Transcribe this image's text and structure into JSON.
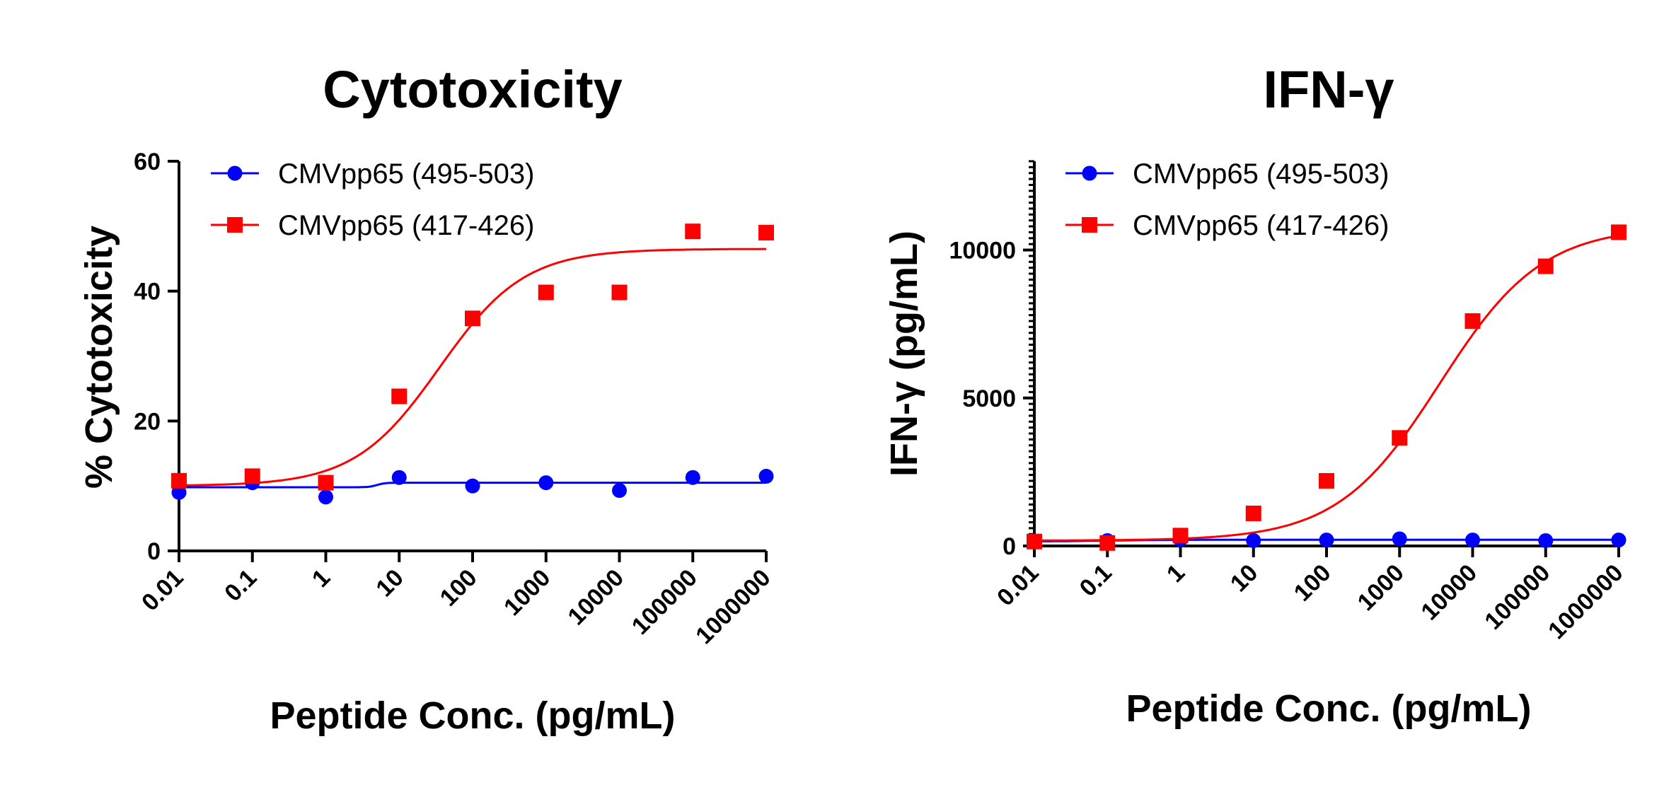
{
  "chart_data": [
    {
      "type": "scatter",
      "title": "Cytotoxicity",
      "xlabel": "Peptide Conc. (pg/mL)",
      "ylabel": "% Cytotoxicity",
      "x_scale": "log",
      "x_tick_labels": [
        "0.01",
        "0.1",
        "1",
        "10",
        "100",
        "1000",
        "10000",
        "100000",
        "1000000"
      ],
      "x": [
        0.01,
        0.1,
        1,
        10,
        100,
        1000,
        10000,
        100000,
        1000000
      ],
      "xlim": [
        0.01,
        1000000
      ],
      "ylim": [
        0,
        60
      ],
      "y_ticks": [
        0,
        20,
        40,
        60
      ],
      "y_tick_labels": [
        "0",
        "20",
        "40",
        "60"
      ],
      "legend_position": "top-left",
      "series": [
        {
          "name": "CMVpp65 (495-503)",
          "color": "#0000ff",
          "marker": "circle",
          "values": [
            9.0,
            10.5,
            8.3,
            11.3,
            10.0,
            10.5,
            9.3,
            11.3,
            11.5
          ],
          "fit": {
            "bottom": 9.8,
            "top": 10.5,
            "log_ec50": 0.7,
            "hill": 8
          }
        },
        {
          "name": "CMVpp65 (417-426)",
          "color": "#ff0000",
          "marker": "square",
          "values": [
            10.8,
            11.5,
            10.5,
            23.8,
            35.8,
            39.8,
            39.8,
            49.2,
            49.0
          ],
          "fit": {
            "bottom": 10.0,
            "top": 46.5,
            "log_ec50": 1.55,
            "hill": 0.75
          }
        }
      ]
    },
    {
      "type": "scatter",
      "title": "IFN-γ",
      "xlabel": "Peptide Conc. (pg/mL)",
      "ylabel": "IFN-γ (pg/mL)",
      "x_scale": "log",
      "x_tick_labels": [
        "0.01",
        "0.1",
        "1",
        "10",
        "100",
        "1000",
        "10000",
        "100000",
        "1000000"
      ],
      "x": [
        0.01,
        0.1,
        1,
        10,
        100,
        1000,
        10000,
        100000,
        1000000
      ],
      "xlim": [
        0.01,
        1000000
      ],
      "ylim": [
        0,
        13000
      ],
      "y_ticks": [
        0,
        5000,
        10000
      ],
      "y_tick_labels": [
        "0",
        "5000",
        "10000"
      ],
      "y_minor_step": 1000,
      "legend_position": "top-left",
      "series": [
        {
          "name": "CMVpp65 (495-503)",
          "color": "#0000ff",
          "marker": "circle",
          "values": [
            150,
            180,
            220,
            180,
            200,
            240,
            200,
            180,
            200
          ],
          "fit": {
            "bottom": 150,
            "top": 210,
            "log_ec50": -1,
            "hill": 1
          }
        },
        {
          "name": "CMVpp65 (417-426)",
          "color": "#ff0000",
          "marker": "square",
          "values": [
            150,
            100,
            350,
            1100,
            2200,
            3650,
            7600,
            9450,
            10600
          ],
          "fit": {
            "bottom": 180,
            "top": 10800,
            "log_ec50": 3.55,
            "hill": 0.62
          }
        }
      ]
    }
  ]
}
